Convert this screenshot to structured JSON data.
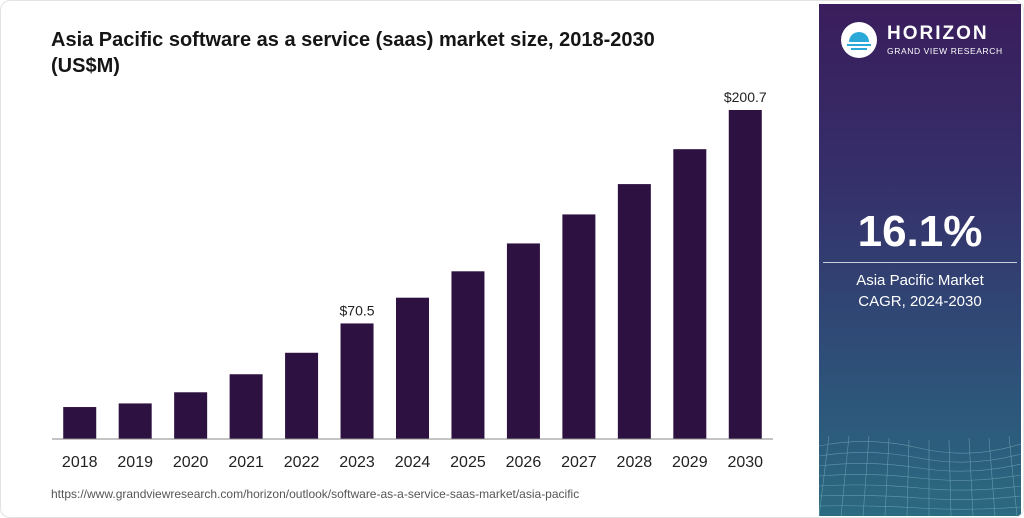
{
  "title": "Asia Pacific software as a service (saas) market size, 2018-2030 (US$M)",
  "source_url": "https://www.grandviewresearch.com/horizon/outlook/software-as-a-service-saas-market/asia-pacific",
  "sidebar": {
    "logo_name": "HORIZON",
    "logo_sub": "GRAND VIEW RESEARCH",
    "cagr_value": "16.1%",
    "cagr_label_line1": "Asia Pacific Market",
    "cagr_label_line2": "CAGR, 2024-2030"
  },
  "colors": {
    "bar": "#2d1141",
    "accent": "#2aa8d8"
  },
  "chart_data": {
    "type": "bar",
    "categories": [
      "2018",
      "2019",
      "2020",
      "2021",
      "2022",
      "2023",
      "2024",
      "2025",
      "2026",
      "2027",
      "2028",
      "2029",
      "2030"
    ],
    "values": [
      19.5,
      21.7,
      28.5,
      39.5,
      52.6,
      70.5,
      86.2,
      102.3,
      119.3,
      137.0,
      155.5,
      176.8,
      200.7
    ],
    "data_labels": {
      "2023": "$70.5",
      "2030": "$200.7"
    },
    "ylim": [
      0,
      200.7
    ]
  }
}
